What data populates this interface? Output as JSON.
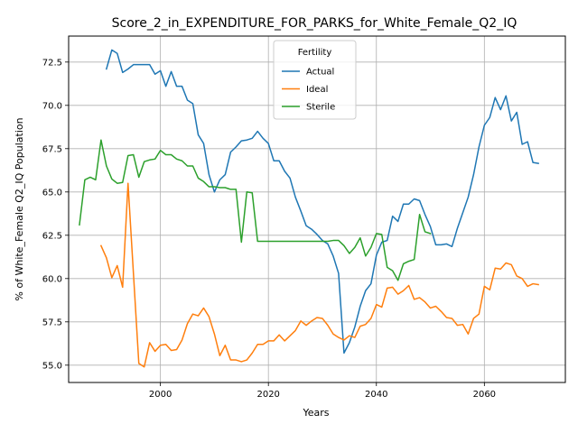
{
  "chart_data": {
    "type": "line",
    "title": "Score_2_in_EXPENDITURE_FOR_PARKS_for_White_Female_Q2_IQ",
    "xlabel": "Years",
    "ylabel": "% of White_Female Q2_IQ Population",
    "xlim": [
      1983,
      2075
    ],
    "ylim": [
      54.0,
      74.0
    ],
    "xticks": [
      2000,
      2020,
      2040,
      2060
    ],
    "yticks": [
      55.0,
      57.5,
      60.0,
      62.5,
      65.0,
      67.5,
      70.0,
      72.5
    ],
    "ytick_labels": [
      "55.0",
      "57.5",
      "60.0",
      "62.5",
      "65.0",
      "67.5",
      "70.0",
      "72.5"
    ],
    "grid": true,
    "legend": {
      "title": "Fertility",
      "position": "top-center"
    },
    "series": [
      {
        "name": "Actual",
        "color": "#1f77b4",
        "x": [
          1990,
          1991,
          1992,
          1993,
          1994,
          1995,
          1996,
          1997,
          1998,
          1999,
          2000,
          2001,
          2002,
          2003,
          2004,
          2005,
          2006,
          2007,
          2008,
          2009,
          2010,
          2011,
          2012,
          2013,
          2014,
          2015,
          2016,
          2017,
          2018,
          2019,
          2020,
          2021,
          2022,
          2023,
          2024,
          2025,
          2026,
          2027,
          2028,
          2029,
          2030,
          2031,
          2032,
          2033,
          2034,
          2035,
          2036,
          2037,
          2038,
          2039,
          2040,
          2041,
          2042,
          2043,
          2044,
          2045,
          2046,
          2047,
          2048,
          2049,
          2050,
          2051,
          2052,
          2053,
          2054,
          2055,
          2056,
          2057,
          2058,
          2059,
          2060,
          2061,
          2062,
          2063,
          2064,
          2065,
          2066,
          2067,
          2068,
          2069,
          2070
        ],
        "values": [
          72.1,
          73.2,
          73.0,
          71.9,
          72.1,
          72.35,
          72.35,
          72.35,
          72.35,
          71.8,
          72.0,
          71.1,
          71.95,
          71.1,
          71.1,
          70.3,
          70.1,
          68.3,
          67.8,
          66.0,
          65.0,
          65.7,
          66.0,
          67.3,
          67.6,
          67.95,
          68.0,
          68.1,
          68.5,
          68.1,
          67.8,
          66.8,
          66.8,
          66.2,
          65.8,
          64.7,
          63.9,
          63.05,
          62.85,
          62.55,
          62.2,
          62.0,
          61.3,
          60.3,
          55.7,
          56.3,
          57.2,
          58.4,
          59.3,
          59.7,
          61.35,
          62.1,
          62.2,
          63.6,
          63.3,
          64.3,
          64.3,
          64.6,
          64.5,
          63.7,
          63.0,
          61.95,
          61.95,
          62.0,
          61.85,
          62.9,
          63.8,
          64.7,
          66.0,
          67.6,
          68.85,
          69.3,
          70.45,
          69.75,
          70.55,
          69.1,
          69.6,
          67.75,
          67.9,
          66.7,
          66.65
        ]
      },
      {
        "name": "Ideal",
        "color": "#ff7f0e",
        "x": [
          1989,
          1990,
          1991,
          1992,
          1993,
          1994,
          1995,
          1996,
          1997,
          1998,
          1999,
          2000,
          2001,
          2002,
          2003,
          2004,
          2005,
          2006,
          2007,
          2008,
          2009,
          2010,
          2011,
          2012,
          2013,
          2014,
          2015,
          2016,
          2017,
          2018,
          2019,
          2020,
          2021,
          2022,
          2023,
          2024,
          2025,
          2026,
          2027,
          2028,
          2029,
          2030,
          2031,
          2032,
          2033,
          2034,
          2035,
          2036,
          2037,
          2038,
          2039,
          2040,
          2041,
          2042,
          2043,
          2044,
          2045,
          2046,
          2047,
          2048,
          2049,
          2050,
          2051,
          2052,
          2053,
          2054,
          2055,
          2056,
          2057,
          2058,
          2059,
          2060,
          2061,
          2062,
          2063,
          2064,
          2065,
          2066,
          2067,
          2068,
          2069,
          2070
        ],
        "values": [
          61.9,
          61.2,
          60.05,
          60.75,
          59.5,
          65.5,
          60.3,
          55.1,
          54.9,
          56.3,
          55.8,
          56.15,
          56.2,
          55.85,
          55.9,
          56.45,
          57.4,
          57.95,
          57.85,
          58.3,
          57.8,
          56.8,
          55.55,
          56.15,
          55.3,
          55.3,
          55.2,
          55.3,
          55.7,
          56.2,
          56.2,
          56.4,
          56.4,
          56.75,
          56.4,
          56.7,
          57.0,
          57.55,
          57.3,
          57.55,
          57.75,
          57.7,
          57.3,
          56.8,
          56.6,
          56.45,
          56.7,
          56.6,
          57.25,
          57.35,
          57.7,
          58.5,
          58.35,
          59.45,
          59.5,
          59.1,
          59.3,
          59.6,
          58.8,
          58.9,
          58.65,
          58.3,
          58.4,
          58.1,
          57.75,
          57.7,
          57.3,
          57.35,
          56.8,
          57.7,
          57.95,
          59.55,
          59.35,
          60.6,
          60.55,
          60.9,
          60.8,
          60.15,
          60.0,
          59.55,
          59.7,
          59.65
        ]
      },
      {
        "name": "Sterile",
        "color": "#2ca02c",
        "x": [
          1985,
          1986,
          1987,
          1988,
          1989,
          1990,
          1991,
          1992,
          1993,
          1994,
          1995,
          1996,
          1997,
          1998,
          1999,
          2000,
          2001,
          2002,
          2003,
          2004,
          2005,
          2006,
          2007,
          2008,
          2009,
          2010,
          2011,
          2012,
          2013,
          2014,
          2015,
          2016,
          2017,
          2018,
          2019,
          2020,
          2021,
          2022,
          2023,
          2024,
          2025,
          2026,
          2027,
          2028,
          2029,
          2030,
          2031,
          2032,
          2033,
          2034,
          2035,
          2036,
          2037,
          2038,
          2039,
          2040,
          2041,
          2042,
          2043,
          2044,
          2045,
          2046,
          2047,
          2048,
          2049,
          2050
        ],
        "values": [
          63.1,
          65.7,
          65.85,
          65.7,
          68.0,
          66.5,
          65.75,
          65.5,
          65.55,
          67.1,
          67.15,
          65.85,
          66.75,
          66.85,
          66.9,
          67.4,
          67.15,
          67.15,
          66.9,
          66.8,
          66.5,
          66.5,
          65.8,
          65.6,
          65.3,
          65.3,
          65.25,
          65.25,
          65.15,
          65.15,
          62.1,
          65.0,
          64.95,
          62.15,
          62.15,
          62.15,
          62.15,
          62.15,
          62.15,
          62.15,
          62.15,
          62.15,
          62.15,
          62.15,
          62.15,
          62.15,
          62.15,
          62.2,
          62.2,
          61.9,
          61.45,
          61.8,
          62.35,
          61.3,
          61.8,
          62.6,
          62.55,
          60.65,
          60.45,
          59.9,
          60.85,
          61.0,
          61.1,
          63.7,
          62.7,
          62.6
        ]
      }
    ]
  }
}
